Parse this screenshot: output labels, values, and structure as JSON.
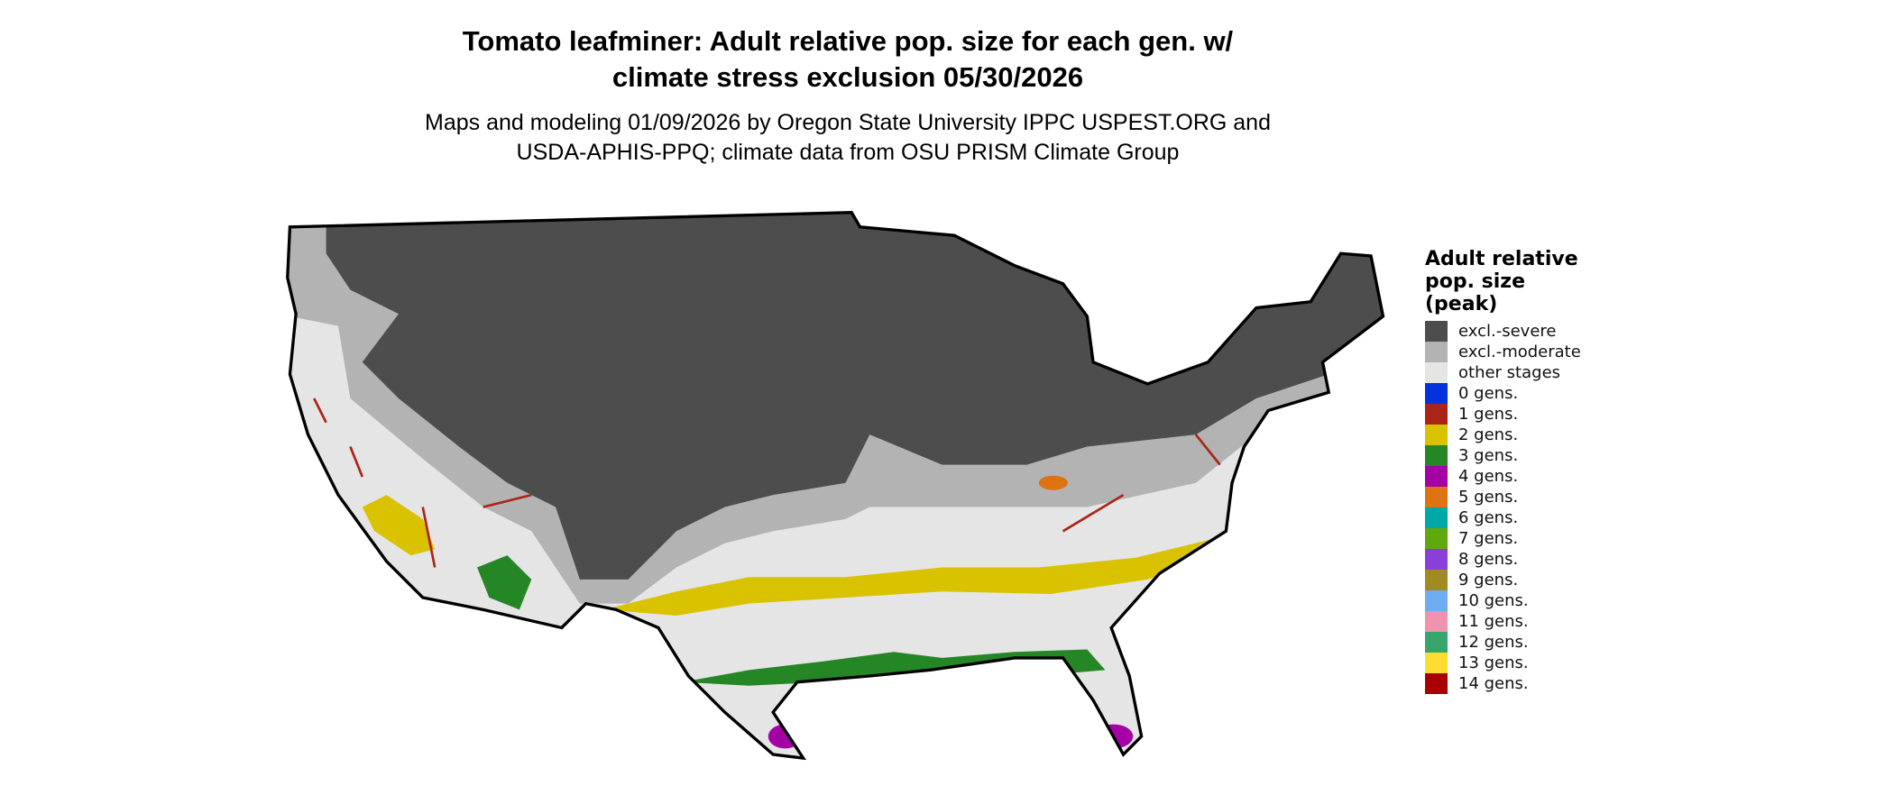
{
  "title": "Tomato leafminer: Adult relative pop. size for each gen. w/ climate stress exclusion 05/30/2026",
  "title_lines": [
    "Tomato leafminer: Adult relative pop. size for each gen. w/",
    "climate stress exclusion 05/30/2026"
  ],
  "subtitle_lines": [
    "Maps and modeling 01/09/2026 by Oregon State University IPPC USPEST.ORG and",
    "USDA-APHIS-PPQ; climate data from OSU PRISM Climate Group"
  ],
  "legend": {
    "title_lines": [
      "Adult relative",
      "pop. size",
      "(peak)"
    ],
    "items": [
      {
        "label": "excl.-severe",
        "color": "#4d4d4d"
      },
      {
        "label": "excl.-moderate",
        "color": "#b3b3b3"
      },
      {
        "label": "other stages",
        "color": "#e5e5e5"
      },
      {
        "label": "0 gens.",
        "color": "#0033dd"
      },
      {
        "label": "1 gens.",
        "color": "#aa2518"
      },
      {
        "label": "2 gens.",
        "color": "#d9c300"
      },
      {
        "label": "3 gens.",
        "color": "#258626"
      },
      {
        "label": "4 gens.",
        "color": "#a500a5"
      },
      {
        "label": "5 gens.",
        "color": "#dd7411"
      },
      {
        "label": "6 gens.",
        "color": "#00a8a8"
      },
      {
        "label": "7 gens.",
        "color": "#5fa80e"
      },
      {
        "label": "8 gens.",
        "color": "#8a3fd8"
      },
      {
        "label": "9 gens.",
        "color": "#a08a22"
      },
      {
        "label": "10 gens.",
        "color": "#70adf0"
      },
      {
        "label": "11 gens.",
        "color": "#f093b0"
      },
      {
        "label": "12 gens.",
        "color": "#35a56b"
      },
      {
        "label": "13 gens.",
        "color": "#fedd33"
      },
      {
        "label": "14 gens.",
        "color": "#a80000"
      }
    ]
  }
}
